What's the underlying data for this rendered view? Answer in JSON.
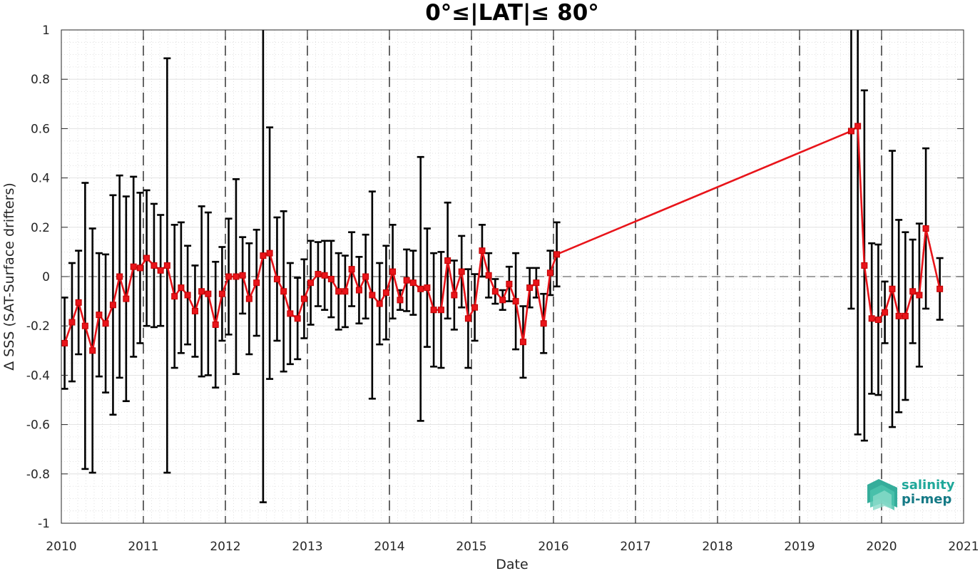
{
  "chart_data": {
    "type": "line",
    "title": "0°≤|LAT|≤ 80°",
    "xlabel": "Date",
    "ylabel": "Δ SSS (SAT-Surface drifters)",
    "xlim": [
      2010,
      2021
    ],
    "ylim": [
      -1,
      1
    ],
    "x_ticks": [
      "2010",
      "2011",
      "2012",
      "2013",
      "2014",
      "2015",
      "2016",
      "2017",
      "2018",
      "2019",
      "2020",
      "2021"
    ],
    "y_ticks": [
      "1",
      "0.8",
      "0.6",
      "0.4",
      "0.2",
      "0",
      "-0.2",
      "-0.4",
      "-0.6",
      "-0.8",
      "-1"
    ],
    "grid": true,
    "year_markers": "dashed vertical lines at each year",
    "zero_line": "dashed horizontal line at 0",
    "colors": {
      "series": "#e8141a",
      "errorbar": "#000000",
      "logo": "#1a9e8f"
    },
    "series": [
      {
        "marker": "square",
        "x": [
          2010.04,
          2010.13,
          2010.21,
          2010.29,
          2010.38,
          2010.46,
          2010.54,
          2010.63,
          2010.71,
          2010.79,
          2010.88,
          2010.96,
          2011.04,
          2011.13,
          2011.21,
          2011.29,
          2011.38,
          2011.46,
          2011.54,
          2011.63,
          2011.71,
          2011.79,
          2011.88,
          2011.96,
          2012.04,
          2012.13,
          2012.21,
          2012.29,
          2012.38,
          2012.46,
          2012.54,
          2012.63,
          2012.71,
          2012.79,
          2012.88,
          2012.96,
          2013.04,
          2013.13,
          2013.21,
          2013.29,
          2013.38,
          2013.46,
          2013.54,
          2013.63,
          2013.71,
          2013.79,
          2013.88,
          2013.96,
          2014.04,
          2014.13,
          2014.21,
          2014.29,
          2014.38,
          2014.46,
          2014.54,
          2014.63,
          2014.71,
          2014.79,
          2014.88,
          2014.96,
          2015.04,
          2015.13,
          2015.21,
          2015.29,
          2015.38,
          2015.46,
          2015.54,
          2015.63,
          2015.71,
          2015.79,
          2015.88,
          2015.96,
          2016.04,
          2019.63,
          2019.71,
          2019.79,
          2019.88,
          2019.96,
          2020.04,
          2020.13,
          2020.21,
          2020.29,
          2020.38,
          2020.46,
          2020.54,
          2020.71
        ],
        "y": [
          -0.27,
          -0.185,
          -0.105,
          -0.2,
          -0.3,
          -0.155,
          -0.19,
          -0.115,
          0,
          -0.09,
          0.04,
          0.035,
          0.075,
          0.045,
          0.025,
          0.045,
          -0.08,
          -0.045,
          -0.075,
          -0.14,
          -0.06,
          -0.07,
          -0.195,
          -0.07,
          0,
          0,
          0.005,
          -0.09,
          -0.025,
          0.085,
          0.095,
          -0.01,
          -0.06,
          -0.15,
          -0.17,
          -0.09,
          -0.025,
          0.01,
          0.005,
          -0.01,
          -0.06,
          -0.06,
          0.03,
          -0.055,
          0,
          -0.075,
          -0.11,
          -0.065,
          0.02,
          -0.095,
          -0.015,
          -0.025,
          -0.05,
          -0.045,
          -0.135,
          -0.135,
          0.065,
          -0.075,
          0.02,
          -0.17,
          -0.125,
          0.105,
          0.005,
          -0.06,
          -0.095,
          -0.03,
          -0.1,
          -0.265,
          -0.045,
          -0.025,
          -0.19,
          0.015,
          0.09,
          0.59,
          0.61,
          0.045,
          -0.17,
          -0.175,
          -0.145,
          -0.05,
          -0.16,
          -0.16,
          -0.06,
          -0.075,
          0.195,
          -0.05
        ],
        "err": [
          0.185,
          0.24,
          0.21,
          0.58,
          0.495,
          0.25,
          0.28,
          0.445,
          0.41,
          0.415,
          0.365,
          0.305,
          0.275,
          0.25,
          0.225,
          0.84,
          0.29,
          0.265,
          0.2,
          0.185,
          0.345,
          0.33,
          0.255,
          0.19,
          0.235,
          0.395,
          0.155,
          0.225,
          0.215,
          1.0,
          0.51,
          0.25,
          0.325,
          0.205,
          0.165,
          0.16,
          0.17,
          0.13,
          0.14,
          0.155,
          0.155,
          0.145,
          0.15,
          0.135,
          0.17,
          0.42,
          0.165,
          0.19,
          0.19,
          0.04,
          0.125,
          0.13,
          0.535,
          0.24,
          0.23,
          0.235,
          0.235,
          0.14,
          0.145,
          0.2,
          0.135,
          0.105,
          0.09,
          0.05,
          0.04,
          0.07,
          0.195,
          0.145,
          0.08,
          0.06,
          0.12,
          0.09,
          0.13,
          0.72,
          1.25,
          0.71,
          0.305,
          0.305,
          0.125,
          0.56,
          0.39,
          0.34,
          0.21,
          0.29,
          0.325,
          0.125
        ]
      }
    ]
  },
  "logo": {
    "line1": "salinity",
    "line2": "pi-mep"
  }
}
